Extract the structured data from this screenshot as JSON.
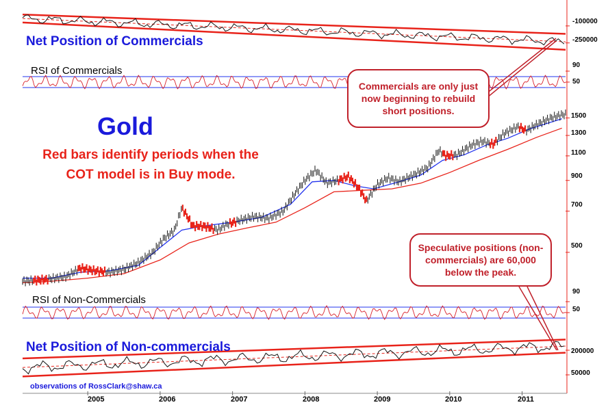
{
  "chart_data": {
    "type": "line",
    "title": "Gold",
    "subtitle": "Red bars identify periods when the COT model is in Buy mode.",
    "credit": "observations of RossClark@shaw.ca",
    "x_tick_labels": [
      "2005",
      "2006",
      "2007",
      "2008",
      "2009",
      "2010",
      "2011"
    ],
    "x_range": [
      2004.1,
      2011.6
    ],
    "panels": [
      {
        "id": "commercials",
        "title": "Net Position of Commercials",
        "tick_labels": [
          "-100000",
          "-250000"
        ],
        "tick_values": [
          -100000,
          -250000
        ],
        "ylim": [
          -330000,
          20000
        ],
        "channel_upper": [
          [
            2004.1,
            0
          ],
          [
            2011.6,
            -170000
          ]
        ],
        "channel_lower": [
          [
            2004.1,
            -70000
          ],
          [
            2011.6,
            -310000
          ]
        ]
      },
      {
        "id": "rsi_commercials",
        "title": "RSI of Commercials",
        "tick_labels": [
          "90",
          "50"
        ],
        "tick_values": [
          90,
          50
        ],
        "ylim": [
          20,
          100
        ],
        "guide_levels": [
          70,
          30
        ]
      },
      {
        "id": "gold",
        "title": "Gold",
        "scale": "log",
        "tick_labels": [
          "1500",
          "1300",
          "1100",
          "900",
          "700",
          "500"
        ],
        "tick_values": [
          1500,
          1300,
          1100,
          900,
          700,
          500
        ],
        "ylim": [
          380,
          1700
        ],
        "price": [
          [
            2004.1,
            395
          ],
          [
            2004.4,
            400
          ],
          [
            2004.7,
            410
          ],
          [
            2004.9,
            440
          ],
          [
            2005.1,
            430
          ],
          [
            2005.3,
            425
          ],
          [
            2005.5,
            435
          ],
          [
            2005.7,
            460
          ],
          [
            2005.9,
            500
          ],
          [
            2006.05,
            560
          ],
          [
            2006.2,
            600
          ],
          [
            2006.3,
            720
          ],
          [
            2006.45,
            620
          ],
          [
            2006.6,
            620
          ],
          [
            2006.8,
            600
          ],
          [
            2006.9,
            625
          ],
          [
            2007.1,
            650
          ],
          [
            2007.3,
            670
          ],
          [
            2007.5,
            660
          ],
          [
            2007.7,
            700
          ],
          [
            2007.85,
            800
          ],
          [
            2008.0,
            900
          ],
          [
            2008.15,
            980
          ],
          [
            2008.3,
            880
          ],
          [
            2008.45,
            900
          ],
          [
            2008.6,
            930
          ],
          [
            2008.75,
            840
          ],
          [
            2008.85,
            760
          ],
          [
            2009.0,
            870
          ],
          [
            2009.15,
            920
          ],
          [
            2009.3,
            890
          ],
          [
            2009.5,
            940
          ],
          [
            2009.7,
            1000
          ],
          [
            2009.85,
            1150
          ],
          [
            2009.95,
            1100
          ],
          [
            2010.1,
            1110
          ],
          [
            2010.3,
            1200
          ],
          [
            2010.45,
            1240
          ],
          [
            2010.6,
            1210
          ],
          [
            2010.75,
            1320
          ],
          [
            2010.95,
            1400
          ],
          [
            2011.05,
            1350
          ],
          [
            2011.2,
            1420
          ],
          [
            2011.4,
            1500
          ],
          [
            2011.55,
            1540
          ]
        ],
        "ma_short": [
          [
            2004.1,
            405
          ],
          [
            2004.5,
            405
          ],
          [
            2004.9,
            425
          ],
          [
            2005.3,
            430
          ],
          [
            2005.7,
            450
          ],
          [
            2006.0,
            520
          ],
          [
            2006.3,
            600
          ],
          [
            2006.6,
            620
          ],
          [
            2007.0,
            640
          ],
          [
            2007.4,
            665
          ],
          [
            2007.8,
            740
          ],
          [
            2008.1,
            890
          ],
          [
            2008.4,
            900
          ],
          [
            2008.7,
            860
          ],
          [
            2008.95,
            840
          ],
          [
            2009.3,
            890
          ],
          [
            2009.6,
            940
          ],
          [
            2009.9,
            1060
          ],
          [
            2010.2,
            1110
          ],
          [
            2010.5,
            1200
          ],
          [
            2010.8,
            1270
          ],
          [
            2011.1,
            1370
          ],
          [
            2011.4,
            1450
          ],
          [
            2011.55,
            1490
          ]
        ],
        "ma_long": [
          [
            2004.1,
            390
          ],
          [
            2004.5,
            395
          ],
          [
            2005.0,
            405
          ],
          [
            2005.5,
            420
          ],
          [
            2006.0,
            470
          ],
          [
            2006.4,
            540
          ],
          [
            2006.8,
            580
          ],
          [
            2007.2,
            610
          ],
          [
            2007.6,
            640
          ],
          [
            2008.0,
            720
          ],
          [
            2008.4,
            820
          ],
          [
            2008.8,
            830
          ],
          [
            2009.2,
            840
          ],
          [
            2009.6,
            880
          ],
          [
            2010.0,
            960
          ],
          [
            2010.4,
            1060
          ],
          [
            2010.8,
            1160
          ],
          [
            2011.2,
            1280
          ],
          [
            2011.55,
            1380
          ]
        ],
        "buy_mode_periods": [
          [
            2004.25,
            2004.45
          ],
          [
            2004.85,
            2005.25
          ],
          [
            2006.3,
            2006.75
          ],
          [
            2006.95,
            2007.05
          ],
          [
            2008.45,
            2008.85
          ],
          [
            2009.9,
            2010.05
          ],
          [
            2010.55,
            2010.65
          ],
          [
            2010.95,
            2011.05
          ]
        ]
      },
      {
        "id": "rsi_noncommercials",
        "title": "RSI of Non-Commercials",
        "tick_labels": [
          "90",
          "50"
        ],
        "tick_values": [
          90,
          50
        ],
        "ylim": [
          20,
          100
        ],
        "guide_levels": [
          70,
          30
        ]
      },
      {
        "id": "noncommercials",
        "title": "Net Position of Non-commercials",
        "tick_labels": [
          "200000",
          "50000"
        ],
        "tick_values": [
          200000,
          50000
        ],
        "ylim": [
          0,
          300000
        ],
        "channel_upper": [
          [
            2004.1,
            150000
          ],
          [
            2011.6,
            265000
          ]
        ],
        "channel_lower": [
          [
            2004.1,
            40000
          ],
          [
            2011.6,
            185000
          ]
        ]
      }
    ]
  },
  "annotations": {
    "commercials_note": "Commercials are only just now beginning to rebuild short positions.",
    "speculative_note": "Speculative positions (non-commercials) are 60,000 below the peak."
  },
  "colors": {
    "accent_blue": "#1a1adb",
    "accent_red": "#e8231a",
    "price_black": "#111111",
    "ma_blue": "#2233ee",
    "ma_red": "#e8231a"
  }
}
